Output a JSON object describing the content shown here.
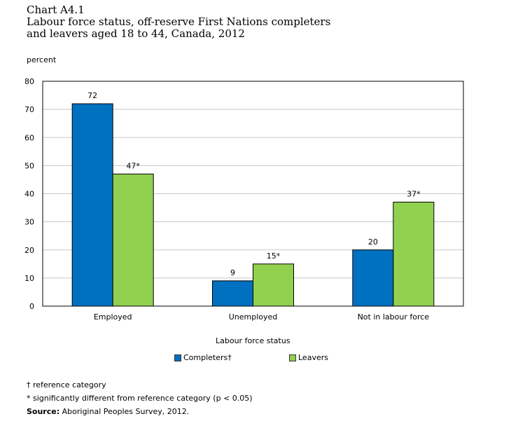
{
  "title_line1": "Chart A4.1",
  "title_line2": "Labour force status, off-reserve First Nations completers",
  "title_line3": "and leavers aged 18 to 44, Canada, 2012",
  "footnotes": {
    "reference": "† reference category",
    "significance": "* significantly different from reference category (p < 0.05)",
    "source_label": "Source:",
    "source_text": "Aboriginal Peoples Survey, 2012."
  },
  "colors": {
    "completers": "#0070c0",
    "leavers": "#92d050",
    "grid": "#c8c8c8"
  },
  "chart_data": {
    "type": "bar",
    "title": "Labour force status, off-reserve First Nations completers and leavers aged 18 to 44, Canada, 2012",
    "xlabel": "Labour force status",
    "ylabel": "percent",
    "ylim": [
      0,
      80
    ],
    "yticks": [
      0,
      10,
      20,
      30,
      40,
      50,
      60,
      70,
      80
    ],
    "grid": true,
    "legend_position": "bottom",
    "categories": [
      "Employed",
      "Unemployed",
      "Not in labour force"
    ],
    "series": [
      {
        "name": "Completers†",
        "values": [
          72,
          9,
          20
        ],
        "labels": [
          "72",
          "9",
          "20"
        ]
      },
      {
        "name": "Leavers",
        "values": [
          47,
          15,
          37
        ],
        "labels": [
          "47*",
          "15*",
          "37*"
        ]
      }
    ]
  }
}
